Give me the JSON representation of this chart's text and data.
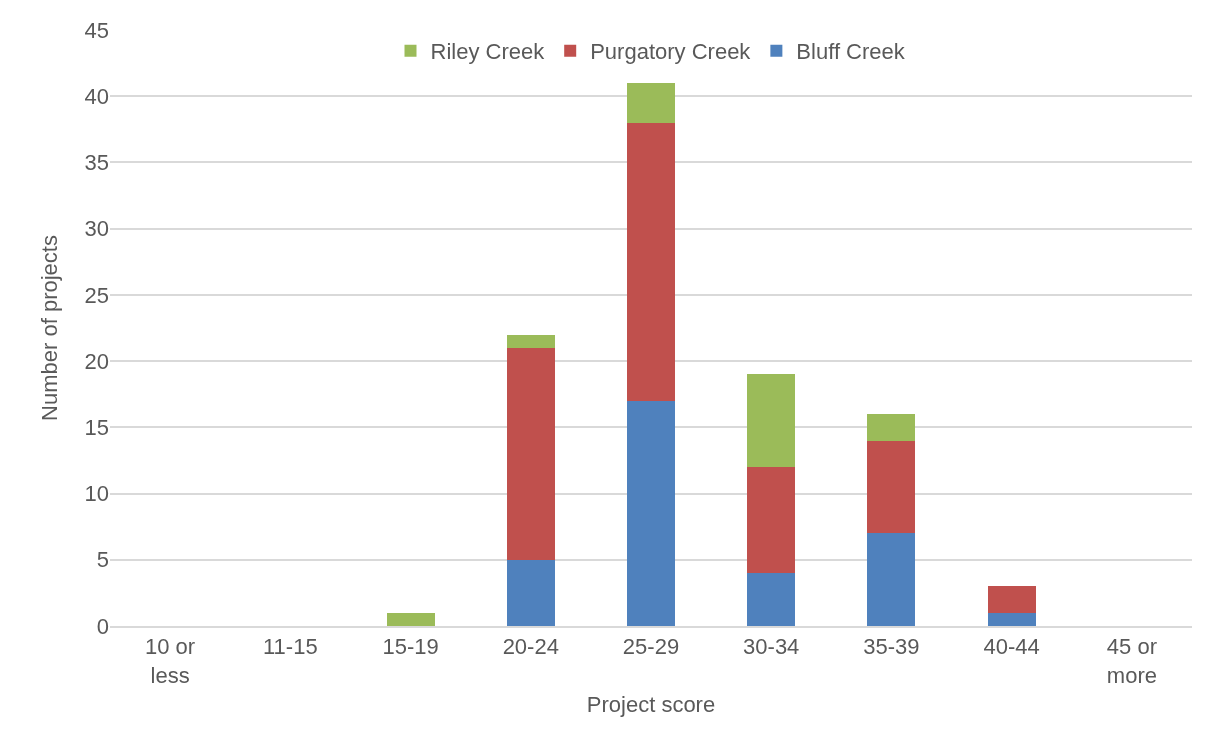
{
  "chart_data": {
    "type": "bar",
    "stacked": true,
    "xlabel": "Project score",
    "ylabel": "Number of projects",
    "categories": [
      "10 or less",
      "11-15",
      "15-19",
      "20-24",
      "25-29",
      "30-34",
      "35-39",
      "40-44",
      "45 or more"
    ],
    "series": [
      {
        "name": "Bluff Creek",
        "color": "#4f81bd",
        "values": [
          0,
          0,
          0,
          5,
          17,
          4,
          7,
          1,
          0
        ]
      },
      {
        "name": "Purgatory Creek",
        "color": "#c0504d",
        "values": [
          0,
          0,
          0,
          16,
          21,
          8,
          7,
          2,
          0
        ]
      },
      {
        "name": "Riley Creek",
        "color": "#9bbb59",
        "values": [
          0,
          0,
          1,
          1,
          3,
          7,
          2,
          0,
          0
        ]
      }
    ],
    "ylim": [
      0,
      45
    ],
    "yticks": [
      0,
      5,
      10,
      15,
      20,
      25,
      30,
      35,
      40,
      45
    ],
    "grid": "y",
    "legend": "top"
  }
}
